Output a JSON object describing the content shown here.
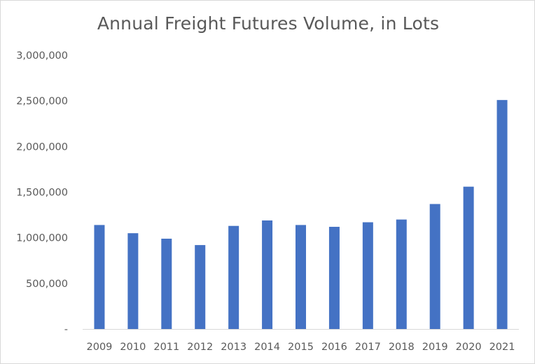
{
  "chart_data": {
    "type": "bar",
    "title": "Annual Freight Futures Volume, in Lots",
    "xlabel": "",
    "ylabel": "",
    "categories": [
      "2009",
      "2010",
      "2011",
      "2012",
      "2013",
      "2014",
      "2015",
      "2016",
      "2017",
      "2018",
      "2019",
      "2020",
      "2021"
    ],
    "values": [
      1140000,
      1050000,
      990000,
      920000,
      1130000,
      1190000,
      1140000,
      1120000,
      1170000,
      1200000,
      1370000,
      1560000,
      2510000
    ],
    "ylim": [
      0,
      3000000
    ],
    "y_ticks": [
      0,
      500000,
      1000000,
      1500000,
      2000000,
      2500000,
      3000000
    ],
    "y_tick_labels": [
      "-",
      "500,000",
      "1,000,000",
      "1,500,000",
      "2,000,000",
      "2,500,000",
      "3,000,000"
    ],
    "grid": false,
    "legend": "none",
    "bar_color": "#4472c4",
    "axis_color": "#d9d9d9",
    "text_color": "#595959"
  }
}
